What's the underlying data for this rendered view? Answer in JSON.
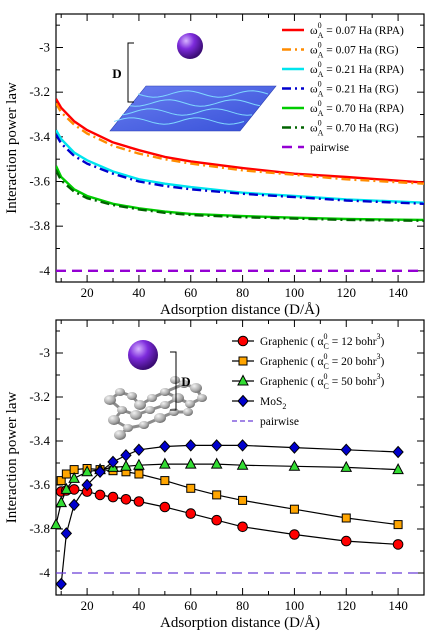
{
  "chart_data": [
    {
      "type": "line",
      "xlabel": "Adsorption distance (D/Å)",
      "ylabel": "Interaction power law",
      "xlim": [
        8,
        150
      ],
      "ylim": [
        -4.05,
        -2.85
      ],
      "xticks": [
        20,
        40,
        60,
        80,
        100,
        120,
        140
      ],
      "yticks": [
        -3,
        -3.2,
        -3.4,
        -3.6,
        -3.8,
        -4
      ],
      "legend_position": "top-right",
      "inset_label": "D",
      "series": [
        {
          "name": "ω_A^0 = 0.07 Ha (RPA)",
          "label_main": "ω",
          "label_sub": "A",
          "label_sup": "0",
          "label_rest": " = 0.07 Ha (RPA)",
          "color": "#ff0000",
          "dash": "solid",
          "x": [
            8,
            10,
            15,
            20,
            30,
            40,
            50,
            60,
            80,
            100,
            120,
            150
          ],
          "y": [
            -3.23,
            -3.27,
            -3.33,
            -3.37,
            -3.425,
            -3.46,
            -3.49,
            -3.51,
            -3.54,
            -3.565,
            -3.58,
            -3.605
          ]
        },
        {
          "name": "ω_A^0 = 0.07 Ha (RG)",
          "label_main": "ω",
          "label_sub": "A",
          "label_sup": "0",
          "label_rest": " = 0.07 Ha (RG)",
          "color": "#ff8c00",
          "dash": "dashdot",
          "x": [
            8,
            10,
            15,
            20,
            30,
            40,
            50,
            60,
            80,
            100,
            120,
            150
          ],
          "y": [
            -3.25,
            -3.29,
            -3.345,
            -3.385,
            -3.44,
            -3.475,
            -3.5,
            -3.52,
            -3.55,
            -3.57,
            -3.59,
            -3.61
          ]
        },
        {
          "name": "ω_A^0 = 0.21 Ha (RPA)",
          "label_main": "ω",
          "label_sub": "A",
          "label_sup": "0",
          "label_rest": " = 0.21 Ha (RPA)",
          "color": "#00e5ee",
          "dash": "solid",
          "x": [
            8,
            10,
            15,
            20,
            30,
            40,
            50,
            60,
            80,
            100,
            120,
            150
          ],
          "y": [
            -3.37,
            -3.41,
            -3.47,
            -3.505,
            -3.555,
            -3.59,
            -3.61,
            -3.625,
            -3.65,
            -3.665,
            -3.68,
            -3.695
          ]
        },
        {
          "name": "ω_A^0 = 0.21 Ha (RG)",
          "label_main": "ω",
          "label_sub": "A",
          "label_sup": "0",
          "label_rest": " = 0.21 Ha (RG)",
          "color": "#0000cd",
          "dash": "dashdot",
          "x": [
            8,
            10,
            15,
            20,
            30,
            40,
            50,
            60,
            80,
            100,
            120,
            150
          ],
          "y": [
            -3.39,
            -3.43,
            -3.485,
            -3.52,
            -3.565,
            -3.6,
            -3.62,
            -3.635,
            -3.655,
            -3.67,
            -3.685,
            -3.7
          ]
        },
        {
          "name": "ω_A^0 = 0.70 Ha (RPA)",
          "label_main": "ω",
          "label_sub": "A",
          "label_sup": "0",
          "label_rest": " = 0.70 Ha (RPA)",
          "color": "#00cc00",
          "dash": "solid",
          "x": [
            8,
            10,
            15,
            20,
            30,
            40,
            50,
            60,
            80,
            100,
            120,
            150
          ],
          "y": [
            -3.53,
            -3.58,
            -3.635,
            -3.665,
            -3.7,
            -3.72,
            -3.735,
            -3.745,
            -3.755,
            -3.762,
            -3.768,
            -3.772
          ]
        },
        {
          "name": "ω_A^0 = 0.70 Ha (RG)",
          "label_main": "ω",
          "label_sub": "A",
          "label_sup": "0",
          "label_rest": " = 0.70 Ha (RG)",
          "color": "#006400",
          "dash": "dashdot",
          "x": [
            8,
            10,
            15,
            20,
            30,
            40,
            50,
            60,
            80,
            100,
            120,
            150
          ],
          "y": [
            -3.55,
            -3.595,
            -3.645,
            -3.675,
            -3.705,
            -3.725,
            -3.74,
            -3.75,
            -3.76,
            -3.766,
            -3.772,
            -3.776
          ]
        },
        {
          "name": "pairwise",
          "label_main": "pairwise",
          "label_sub": "",
          "label_sup": "",
          "label_rest": "",
          "color": "#9400d3",
          "dash": "dashed",
          "x": [
            8,
            150
          ],
          "y": [
            -4,
            -4
          ]
        }
      ]
    },
    {
      "type": "line",
      "xlabel": "Adsorption distance (D/Å)",
      "ylabel": "Interaction power law",
      "xlim": [
        8,
        150
      ],
      "ylim": [
        -4.1,
        -2.85
      ],
      "xticks": [
        20,
        40,
        60,
        80,
        100,
        120,
        140
      ],
      "yticks": [
        -3,
        -3.2,
        -3.4,
        -3.6,
        -3.8,
        -4
      ],
      "legend_position": "top-right",
      "inset_label": "D",
      "series": [
        {
          "name": "Graphenic (α_C^0 = 12 bohr^3)",
          "label_main": "Graphenic ( α",
          "label_sub": "C",
          "label_sup": "0",
          "label_rest": " = 12 bohr",
          "label_sup2": "3",
          "label_end": ")",
          "color": "#ff0000",
          "marker": "circle",
          "x": [
            10,
            12,
            15,
            20,
            25,
            30,
            35,
            40,
            50,
            60,
            70,
            80,
            100,
            120,
            140
          ],
          "y": [
            -3.63,
            -3.625,
            -3.62,
            -3.63,
            -3.645,
            -3.655,
            -3.665,
            -3.675,
            -3.7,
            -3.73,
            -3.76,
            -3.79,
            -3.825,
            -3.855,
            -3.87
          ]
        },
        {
          "name": "Graphenic (α_C^0 = 20 bohr^3)",
          "label_main": "Graphenic ( α",
          "label_sub": "C",
          "label_sup": "0",
          "label_rest": " = 20 bohr",
          "label_sup2": "3",
          "label_end": ")",
          "color": "#ffa500",
          "marker": "square",
          "x": [
            10,
            12,
            15,
            20,
            25,
            30,
            35,
            40,
            50,
            60,
            70,
            80,
            100,
            120,
            140
          ],
          "y": [
            -3.58,
            -3.55,
            -3.53,
            -3.525,
            -3.53,
            -3.535,
            -3.54,
            -3.55,
            -3.58,
            -3.615,
            -3.645,
            -3.67,
            -3.71,
            -3.75,
            -3.78
          ]
        },
        {
          "name": "Graphenic (α_C^0 = 50 bohr^3)",
          "label_main": "Graphenic ( α",
          "label_sub": "C",
          "label_sup": "0",
          "label_rest": " = 50 bohr",
          "label_sup2": "3",
          "label_end": ")",
          "color": "#33dd33",
          "marker": "triangle",
          "x": [
            8,
            10,
            12,
            15,
            20,
            25,
            30,
            35,
            40,
            50,
            60,
            70,
            80,
            100,
            120,
            140
          ],
          "y": [
            -3.78,
            -3.68,
            -3.62,
            -3.57,
            -3.54,
            -3.53,
            -3.52,
            -3.515,
            -3.51,
            -3.505,
            -3.505,
            -3.505,
            -3.51,
            -3.515,
            -3.52,
            -3.53
          ]
        },
        {
          "name": "MoS_2",
          "label_main": "MoS",
          "label_sub": "2",
          "label_sup": "",
          "label_rest": "",
          "label_sup2": "",
          "label_end": "",
          "color": "#0000cd",
          "marker": "diamond",
          "x": [
            10,
            12,
            15,
            20,
            25,
            30,
            35,
            40,
            50,
            60,
            70,
            80,
            100,
            120,
            140
          ],
          "y": [
            -4.05,
            -3.82,
            -3.69,
            -3.6,
            -3.54,
            -3.495,
            -3.465,
            -3.44,
            -3.425,
            -3.42,
            -3.42,
            -3.42,
            -3.43,
            -3.44,
            -3.45
          ]
        },
        {
          "name": "pairwise",
          "label_main": "pairwise",
          "label_sub": "",
          "label_sup": "",
          "label_rest": "",
          "label_sup2": "",
          "label_end": "",
          "color": "#6a3dd6",
          "marker": "none",
          "dash": "dashed",
          "x": [
            8,
            150
          ],
          "y": [
            -4,
            -4
          ]
        }
      ]
    }
  ]
}
